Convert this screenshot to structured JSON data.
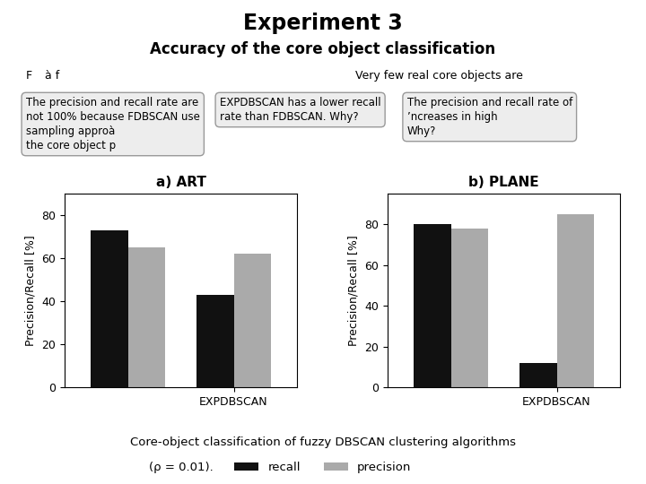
{
  "title": "Experiment 3",
  "subtitle": "Accuracy of the core object classification",
  "caption": "Core-object classification of fuzzy DBSCAN clustering algorithms",
  "caption2": "(ρ = 0.01).",
  "legend": "lower center",
  "annotations": [
    "F",
    "à f",
    "Very few real core objects are"
  ],
  "chart_data": [
    {
      "type": "bar",
      "title": "a) ART",
      "categories": [
        null,
        "EXPDBSCAN"
      ],
      "series": [
        {
          "name": "recall",
          "color": "#111111",
          "values": [
            73,
            43
          ]
        },
        {
          "name": "precision",
          "color": "#aaaaaa",
          "values": [
            65,
            62
          ]
        }
      ],
      "y_label": "Precision/Recall [%]",
      "ylim": [
        0,
        90
      ],
      "yticks": [
        0,
        20,
        40,
        60,
        80
      ],
      "annotations": [
        "The precision and recall rate are\nnot 100% because FDBSCAN use\nsampling approà\nthe core object p",
        "EXPDBSCAN has a lower recall\nrate than FDBSCAN. Why?"
      ]
    },
    {
      "type": "bar",
      "title": "b) PLANE",
      "categories": [
        null,
        "EXPDBSCAN"
      ],
      "series": [
        {
          "name": "recall",
          "color": "#111111",
          "values": [
            80,
            12
          ]
        },
        {
          "name": "precision",
          "color": "#aaaaaa",
          "values": [
            78,
            85
          ]
        }
      ],
      "y_label": "Precision/Recall [%]",
      "ylim": [
        0,
        95
      ],
      "yticks": [
        0,
        20,
        40,
        60,
        80
      ],
      "annotations": [
        "The precision and recall rate of\n’ncreases in high\nWhy?"
      ]
    }
  ]
}
